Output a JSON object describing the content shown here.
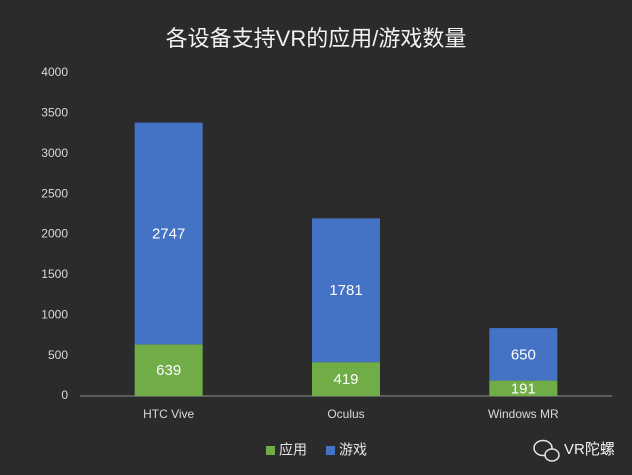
{
  "chart_data": {
    "type": "stacked-bar",
    "title": "各设备支持VR的应用/游戏数量",
    "categories": [
      "HTC Vive",
      "Oculus",
      "Windows MR"
    ],
    "series": [
      {
        "name": "应用",
        "color": "#70ad47",
        "values": [
          639,
          419,
          191
        ]
      },
      {
        "name": "游戏",
        "color": "#4472c4",
        "values": [
          2747,
          1781,
          650
        ]
      }
    ],
    "ylim": [
      0,
      4000
    ],
    "yticks": [
      0,
      500,
      1000,
      1500,
      2000,
      2500,
      3000,
      3500,
      4000
    ],
    "grid": false,
    "legend": "bottom"
  },
  "watermark": "VR陀螺"
}
